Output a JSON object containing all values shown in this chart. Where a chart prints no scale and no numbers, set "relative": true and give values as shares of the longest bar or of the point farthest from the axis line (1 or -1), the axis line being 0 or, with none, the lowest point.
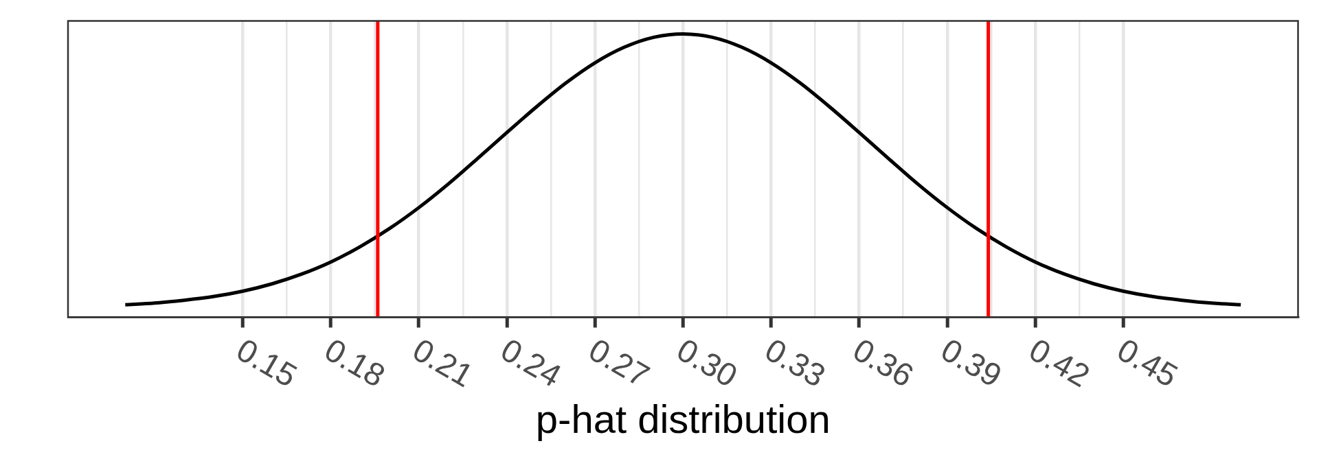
{
  "chart_data": {
    "type": "line",
    "xlabel": "p-hat distribution",
    "relative": true,
    "x": [
      0.11,
      0.12,
      0.13,
      0.14,
      0.15,
      0.16,
      0.17,
      0.18,
      0.19,
      0.2,
      0.21,
      0.22,
      0.23,
      0.24,
      0.25,
      0.26,
      0.27,
      0.28,
      0.29,
      0.3,
      0.31,
      0.32,
      0.33,
      0.34,
      0.35,
      0.36,
      0.37,
      0.38,
      0.39,
      0.4,
      0.41,
      0.42,
      0.43,
      0.44,
      0.45,
      0.46,
      0.47,
      0.48,
      0.49
    ],
    "values": [
      0.044,
      0.05,
      0.06,
      0.073,
      0.092,
      0.118,
      0.152,
      0.195,
      0.249,
      0.313,
      0.387,
      0.47,
      0.56,
      0.652,
      0.742,
      0.826,
      0.898,
      0.953,
      0.988,
      1,
      0.988,
      0.953,
      0.898,
      0.826,
      0.742,
      0.652,
      0.56,
      0.47,
      0.387,
      0.313,
      0.249,
      0.195,
      0.152,
      0.118,
      0.092,
      0.073,
      0.06,
      0.05,
      0.044
    ],
    "color": "#000000",
    "xlim": [
      0.0905,
      0.5095
    ],
    "xticks": [
      0.15,
      0.18,
      0.21,
      0.24,
      0.27,
      {
        "value": 0.3,
        "label": "0.30"
      },
      0.33,
      0.36,
      0.39,
      0.42,
      0.45
    ],
    "ref_lines": [
      {
        "axis": "x",
        "value": 0.196,
        "color": "#ff0000"
      },
      {
        "axis": "x",
        "value": 0.404,
        "color": "#ff0000"
      }
    ],
    "grid": "x"
  }
}
